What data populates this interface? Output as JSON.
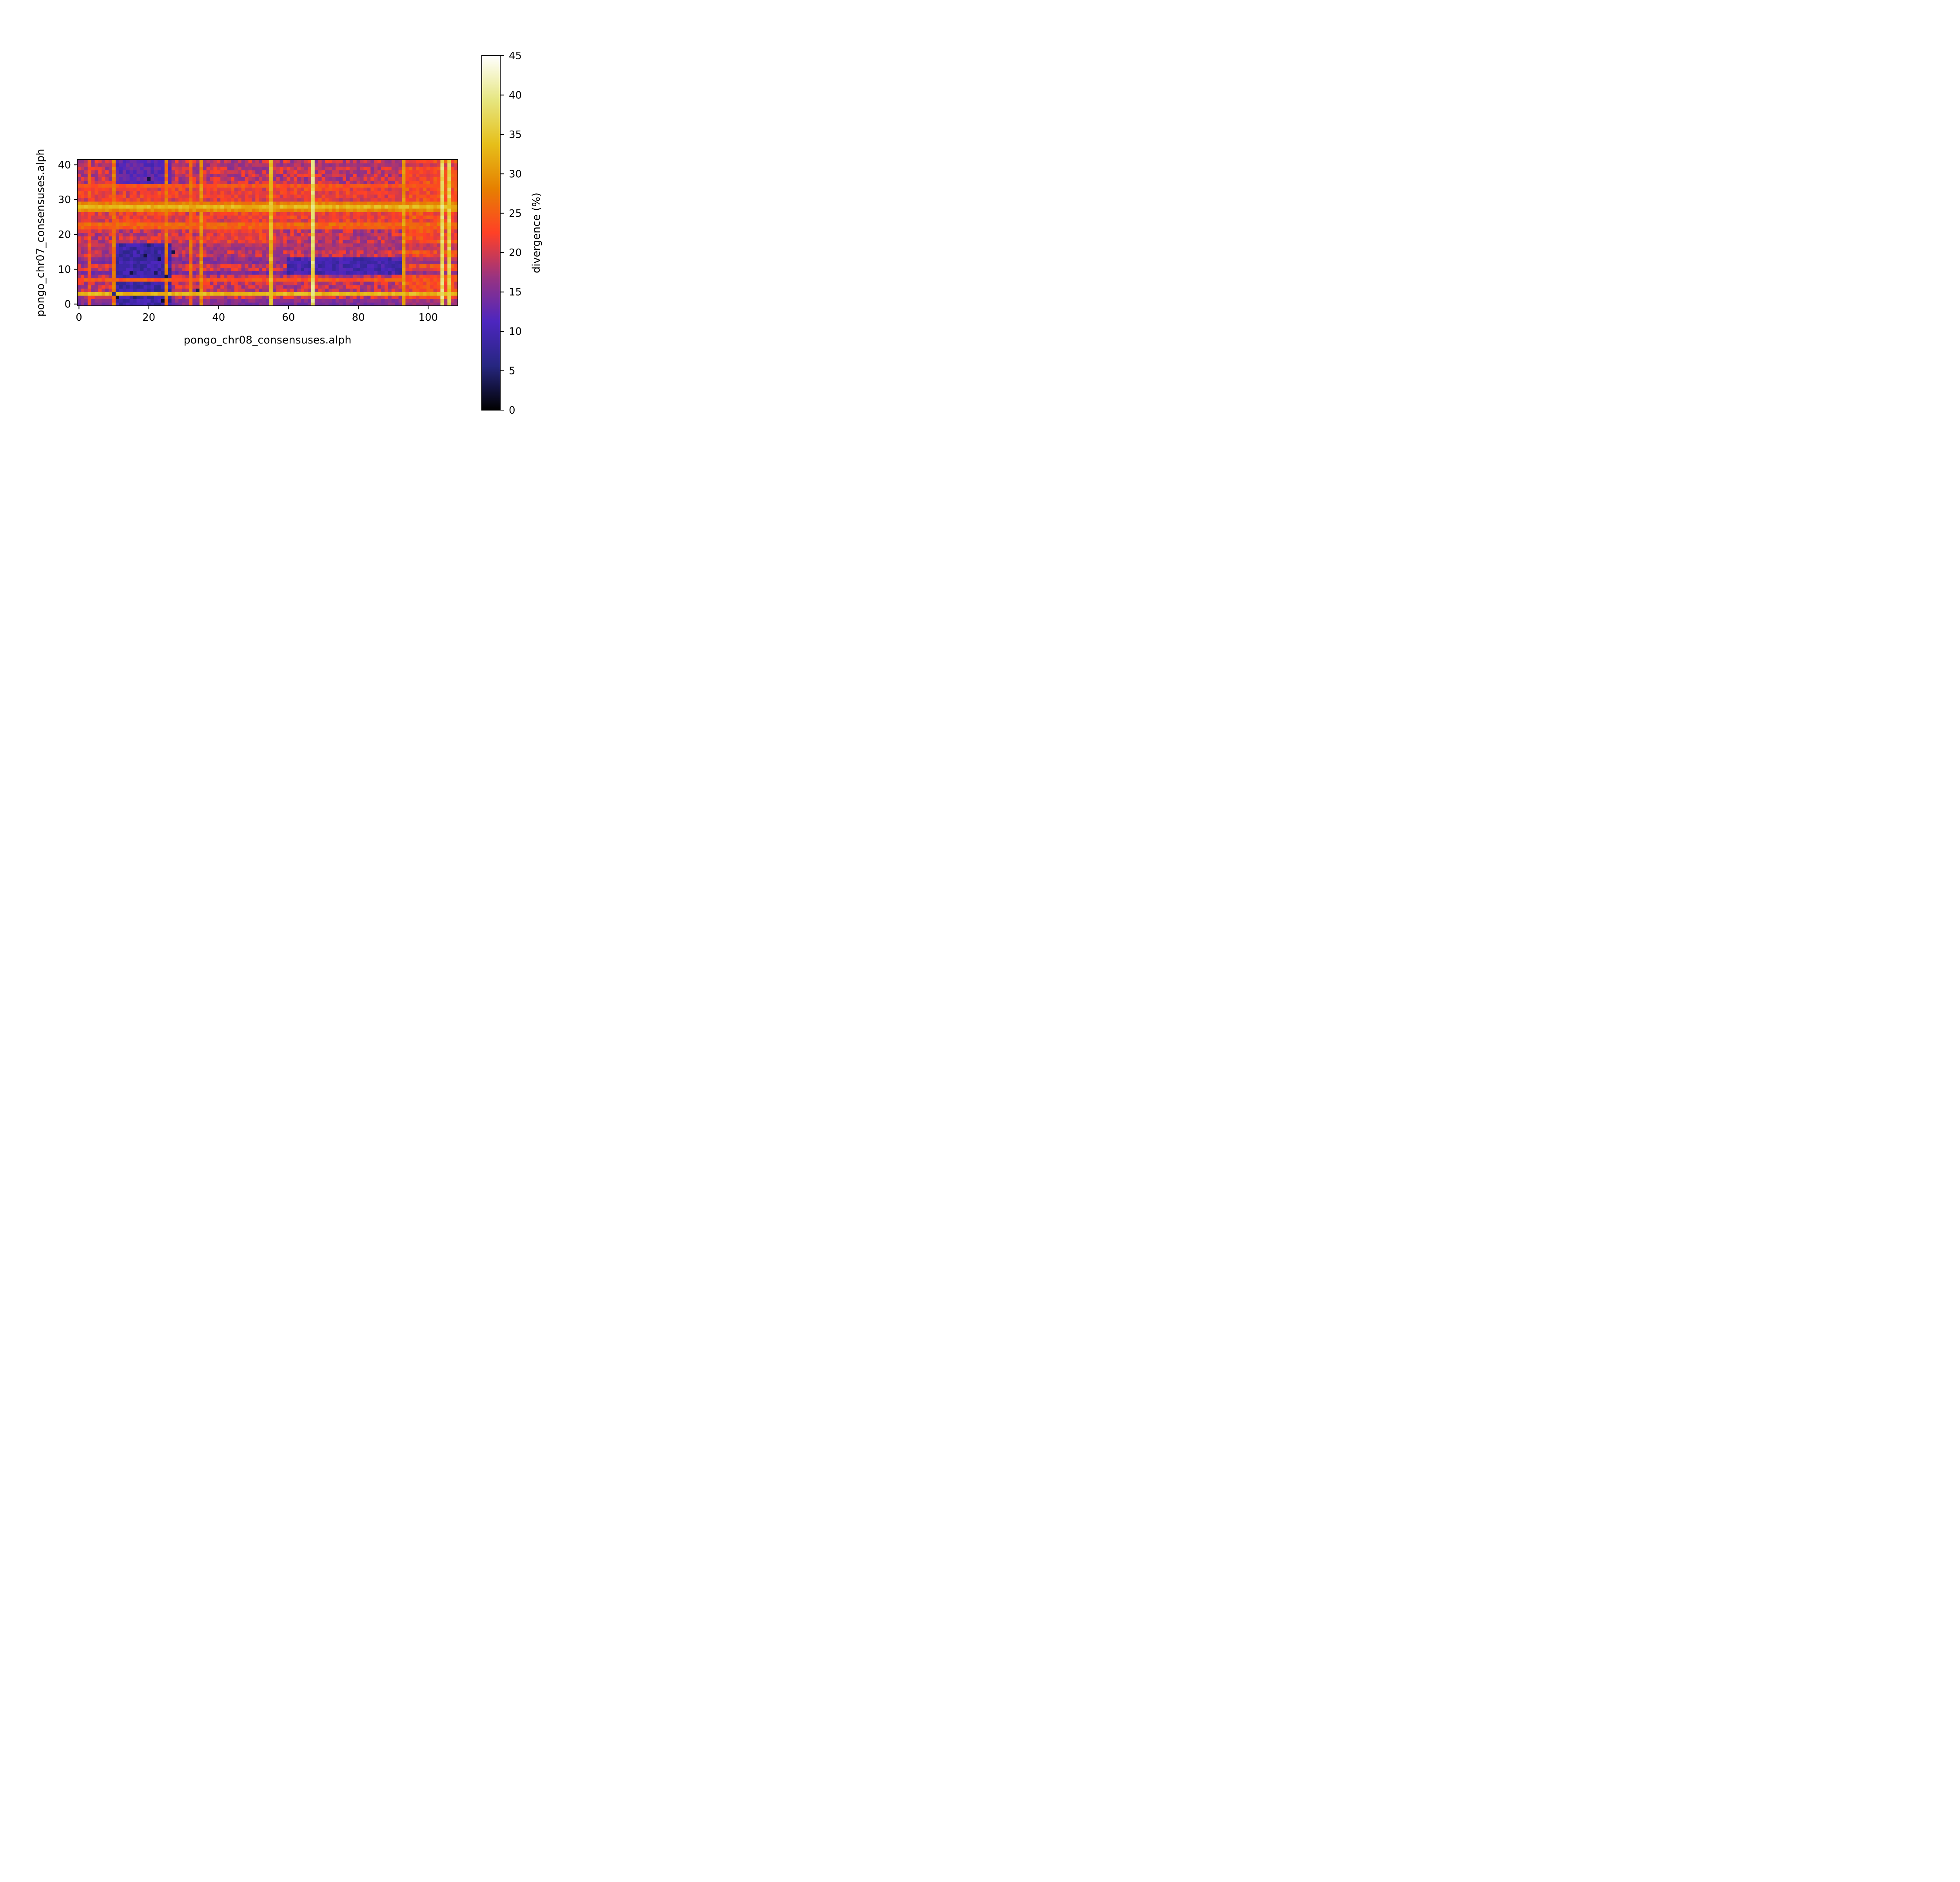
{
  "chart_data": {
    "type": "heatmap",
    "title": "",
    "xlabel": "pongo_chr08_consensuses.alph",
    "ylabel": "pongo_chr07_consensuses.alph",
    "n_cols": 109,
    "n_rows": 42,
    "xlim": [
      -0.5,
      108.5
    ],
    "ylim": [
      -0.5,
      41.5
    ],
    "xticks": [
      0,
      20,
      40,
      60,
      80,
      100
    ],
    "yticks": [
      0,
      10,
      20,
      30,
      40
    ],
    "colormap": "CMRmap",
    "colorbar": {
      "label": "divergence (%)",
      "range": [
        0,
        45
      ],
      "ticks": [
        0,
        5,
        10,
        15,
        20,
        25,
        30,
        35,
        40,
        45
      ]
    },
    "hot_rows": [
      {
        "row": 3,
        "value": 33
      },
      {
        "row": 28,
        "value": 33
      },
      {
        "row": 27,
        "value": 29
      },
      {
        "row": 29,
        "value": 28
      },
      {
        "row": 22,
        "value": 25
      },
      {
        "row": 23,
        "value": 26
      },
      {
        "row": 7,
        "value": 24
      },
      {
        "row": 34,
        "value": 24
      }
    ],
    "hot_cols": [
      {
        "col": 67,
        "value": 38
      },
      {
        "col": 104,
        "value": 38
      },
      {
        "col": 106,
        "value": 36
      },
      {
        "col": 10,
        "value": 27
      },
      {
        "col": 25,
        "value": 27
      },
      {
        "col": 35,
        "value": 29
      },
      {
        "col": 55,
        "value": 33
      },
      {
        "col": 93,
        "value": 30
      },
      {
        "col": 3,
        "value": 24
      },
      {
        "col": 32,
        "value": 26
      }
    ],
    "cold_rows": [
      {
        "row": 0,
        "value": 11
      },
      {
        "row": 1,
        "value": 12
      },
      {
        "row": 9,
        "value": 9
      },
      {
        "row": 12,
        "value": 11
      },
      {
        "row": 13,
        "value": 13
      },
      {
        "row": 16,
        "value": 16
      },
      {
        "row": 17,
        "value": 17
      },
      {
        "row": 40,
        "value": 16
      }
    ],
    "cold_regions": [
      {
        "cols": [
          11,
          26
        ],
        "rows": [
          0,
          17
        ],
        "value": 9
      },
      {
        "cols": [
          11,
          26
        ],
        "rows": [
          35,
          41
        ],
        "value": 12
      },
      {
        "cols": [
          60,
          92
        ],
        "rows": [
          9,
          13
        ],
        "value": 10
      }
    ],
    "warm_regions": [
      {
        "cols": [
          93,
          108
        ],
        "rows": [
          0,
          41
        ],
        "value": 27
      },
      {
        "cols": [
          0,
          108
        ],
        "rows": [
          24,
          33
        ],
        "value": 24
      },
      {
        "cols": [
          36,
          55
        ],
        "rows": [
          18,
          23
        ],
        "value": 24
      }
    ],
    "dark_cells": [
      {
        "col": 20,
        "row": 36,
        "value": 3
      },
      {
        "col": 20,
        "row": 17,
        "value": 5
      },
      {
        "col": 19,
        "row": 14,
        "value": 3
      },
      {
        "col": 23,
        "row": 13,
        "value": 3
      },
      {
        "col": 27,
        "row": 15,
        "value": 3
      },
      {
        "col": 15,
        "row": 9,
        "value": 3
      },
      {
        "col": 22,
        "row": 9,
        "value": 4
      },
      {
        "col": 25,
        "row": 8,
        "value": 3
      },
      {
        "col": 10,
        "row": 3,
        "value": 6
      },
      {
        "col": 11,
        "row": 2,
        "value": 2
      },
      {
        "col": 24,
        "row": 1,
        "value": 2
      },
      {
        "col": 16,
        "row": 2,
        "value": 5
      },
      {
        "col": 34,
        "row": 4,
        "value": 4
      }
    ],
    "base_value": 19
  }
}
